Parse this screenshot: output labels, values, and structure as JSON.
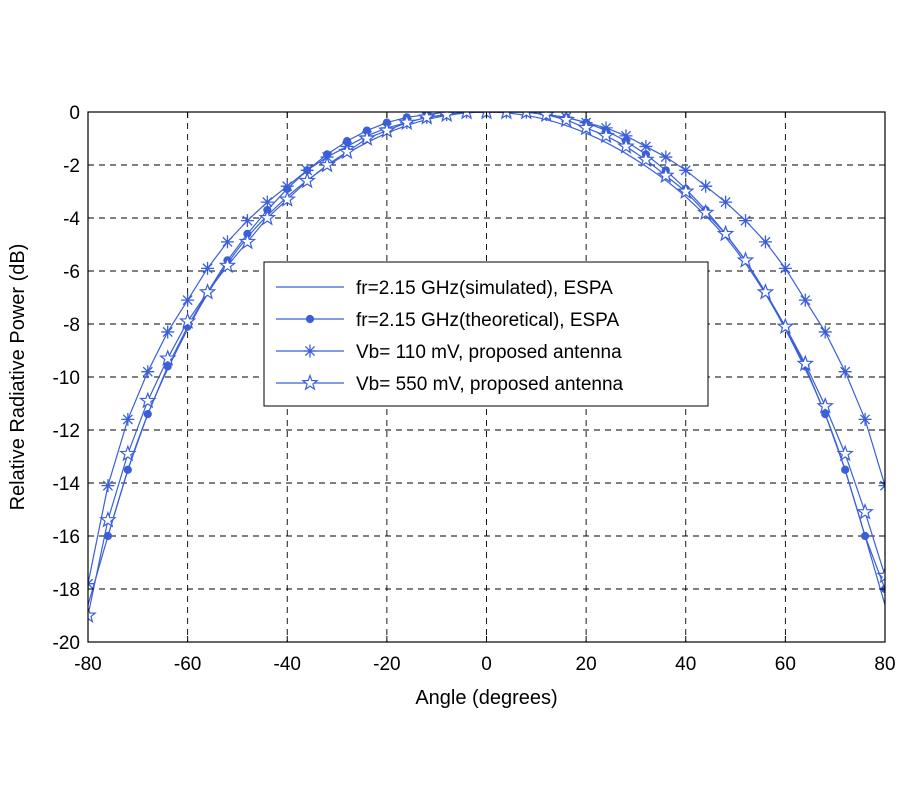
{
  "chart_data": {
    "type": "line",
    "title": "",
    "xlabel": "Angle (degrees)",
    "ylabel": "Relative Radiative Power (dB)",
    "xlim": [
      -80,
      80
    ],
    "ylim": [
      -20,
      0
    ],
    "xticks": [
      -80,
      -60,
      -40,
      -20,
      0,
      20,
      40,
      60,
      80
    ],
    "yticks": [
      0,
      -2,
      -4,
      -6,
      -8,
      -10,
      -12,
      -14,
      -16,
      -18,
      -20
    ],
    "grid": true,
    "grid_style": "dashed",
    "legend_position": "center",
    "line_color": "#3a5fd9",
    "series": [
      {
        "name": "fr=2.15 GHz(simulated), ESPA",
        "marker": "none",
        "x": [
          -80,
          -70,
          -60,
          -50,
          -40,
          -30,
          -20,
          -10,
          0,
          10,
          20,
          30,
          40,
          50,
          60,
          70,
          80
        ],
        "y": [
          -18.6,
          -12.4,
          -8.2,
          -5.2,
          -3.2,
          -1.8,
          -0.8,
          -0.2,
          0,
          -0.2,
          -0.8,
          -1.8,
          -3.2,
          -5.2,
          -8.2,
          -12.4,
          -18.6
        ]
      },
      {
        "name": "fr=2.15 GHz(theoretical), ESPA",
        "marker": "dot",
        "x": [
          -76,
          -72,
          -68,
          -64,
          -60,
          -56,
          -52,
          -48,
          -44,
          -40,
          -36,
          -32,
          -28,
          -24,
          -20,
          -16,
          -12,
          -8,
          -4,
          0,
          4,
          8,
          12,
          16,
          20,
          24,
          28,
          32,
          36,
          40,
          44,
          48,
          52,
          56,
          60,
          64,
          68,
          72,
          76,
          80
        ],
        "y": [
          -16.0,
          -13.5,
          -11.4,
          -9.6,
          -8.1,
          -6.8,
          -5.6,
          -4.6,
          -3.7,
          -2.9,
          -2.2,
          -1.6,
          -1.1,
          -0.7,
          -0.4,
          -0.2,
          -0.1,
          0,
          0,
          0,
          0,
          0,
          -0.1,
          -0.2,
          -0.4,
          -0.7,
          -1.1,
          -1.6,
          -2.2,
          -2.9,
          -3.7,
          -4.6,
          -5.6,
          -6.8,
          -8.1,
          -9.6,
          -11.4,
          -13.5,
          -16.0,
          -18.0
        ]
      },
      {
        "name": "Vb= 110 mV, proposed antenna",
        "marker": "asterisk",
        "x": [
          -80,
          -76,
          -72,
          -68,
          -64,
          -60,
          -56,
          -52,
          -48,
          -44,
          -40,
          -36,
          -32,
          -28,
          -24,
          -20,
          -16,
          -12,
          -8,
          -4,
          0,
          4,
          8,
          12,
          16,
          20,
          24,
          28,
          32,
          36,
          40,
          44,
          48,
          52,
          56,
          60,
          64,
          68,
          72,
          76,
          80
        ],
        "y": [
          -17.8,
          -14.1,
          -11.6,
          -9.8,
          -8.3,
          -7.1,
          -5.9,
          -4.9,
          -4.1,
          -3.4,
          -2.8,
          -2.2,
          -1.7,
          -1.3,
          -0.9,
          -0.6,
          -0.4,
          -0.2,
          -0.1,
          0,
          0,
          0,
          0,
          -0.1,
          -0.2,
          -0.4,
          -0.6,
          -0.9,
          -1.3,
          -1.7,
          -2.2,
          -2.8,
          -3.4,
          -4.1,
          -4.9,
          -5.9,
          -7.1,
          -8.3,
          -9.8,
          -11.6,
          -14.1
        ]
      },
      {
        "name": "Vb= 550 mV, proposed antenna",
        "marker": "star",
        "x": [
          -80,
          -76,
          -72,
          -68,
          -64,
          -60,
          -56,
          -52,
          -48,
          -44,
          -40,
          -36,
          -32,
          -28,
          -24,
          -20,
          -16,
          -12,
          -8,
          -4,
          0,
          4,
          8,
          12,
          16,
          20,
          24,
          28,
          32,
          36,
          40,
          44,
          48,
          52,
          56,
          60,
          64,
          68,
          72,
          76,
          80
        ],
        "y": [
          -19.0,
          -15.4,
          -12.9,
          -10.9,
          -9.3,
          -7.9,
          -6.8,
          -5.8,
          -4.9,
          -4.0,
          -3.3,
          -2.6,
          -2.0,
          -1.5,
          -1.0,
          -0.7,
          -0.4,
          -0.2,
          -0.1,
          0,
          0,
          0,
          0,
          -0.1,
          -0.3,
          -0.6,
          -0.9,
          -1.3,
          -1.8,
          -2.4,
          -3.0,
          -3.8,
          -4.6,
          -5.6,
          -6.8,
          -8.1,
          -9.5,
          -11.1,
          -12.9,
          -15.1,
          -17.5
        ]
      }
    ]
  }
}
